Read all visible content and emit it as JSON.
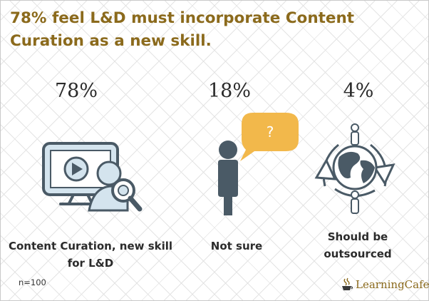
{
  "title": "78% feel L&D must incorporate Content Curation as a new skill.",
  "chart_data": {
    "type": "table",
    "unit": "%",
    "categories": [
      "Content Curation, new skill for L&D",
      "Not sure",
      "Should be outsourced"
    ],
    "values": [
      78,
      18,
      4
    ],
    "display_values": [
      "78%",
      "18%",
      "4%"
    ],
    "caption_lines": [
      [
        "Content Curation, new skill",
        "for L&D"
      ],
      [
        "Not sure"
      ],
      [
        "Should be",
        "outsourced"
      ]
    ]
  },
  "icons": [
    "video-curation-icon",
    "question-person-icon",
    "globe-outsource-icon"
  ],
  "bubble_text": "?",
  "sample_size": "n=100",
  "brand": {
    "name": "LearningCafe"
  },
  "colors": {
    "headline": "#8b6a1c",
    "icon_dark": "#4a5a66",
    "icon_light": "#d4e4ee",
    "bubble": "#f2b84b",
    "background": "#ffffff"
  }
}
